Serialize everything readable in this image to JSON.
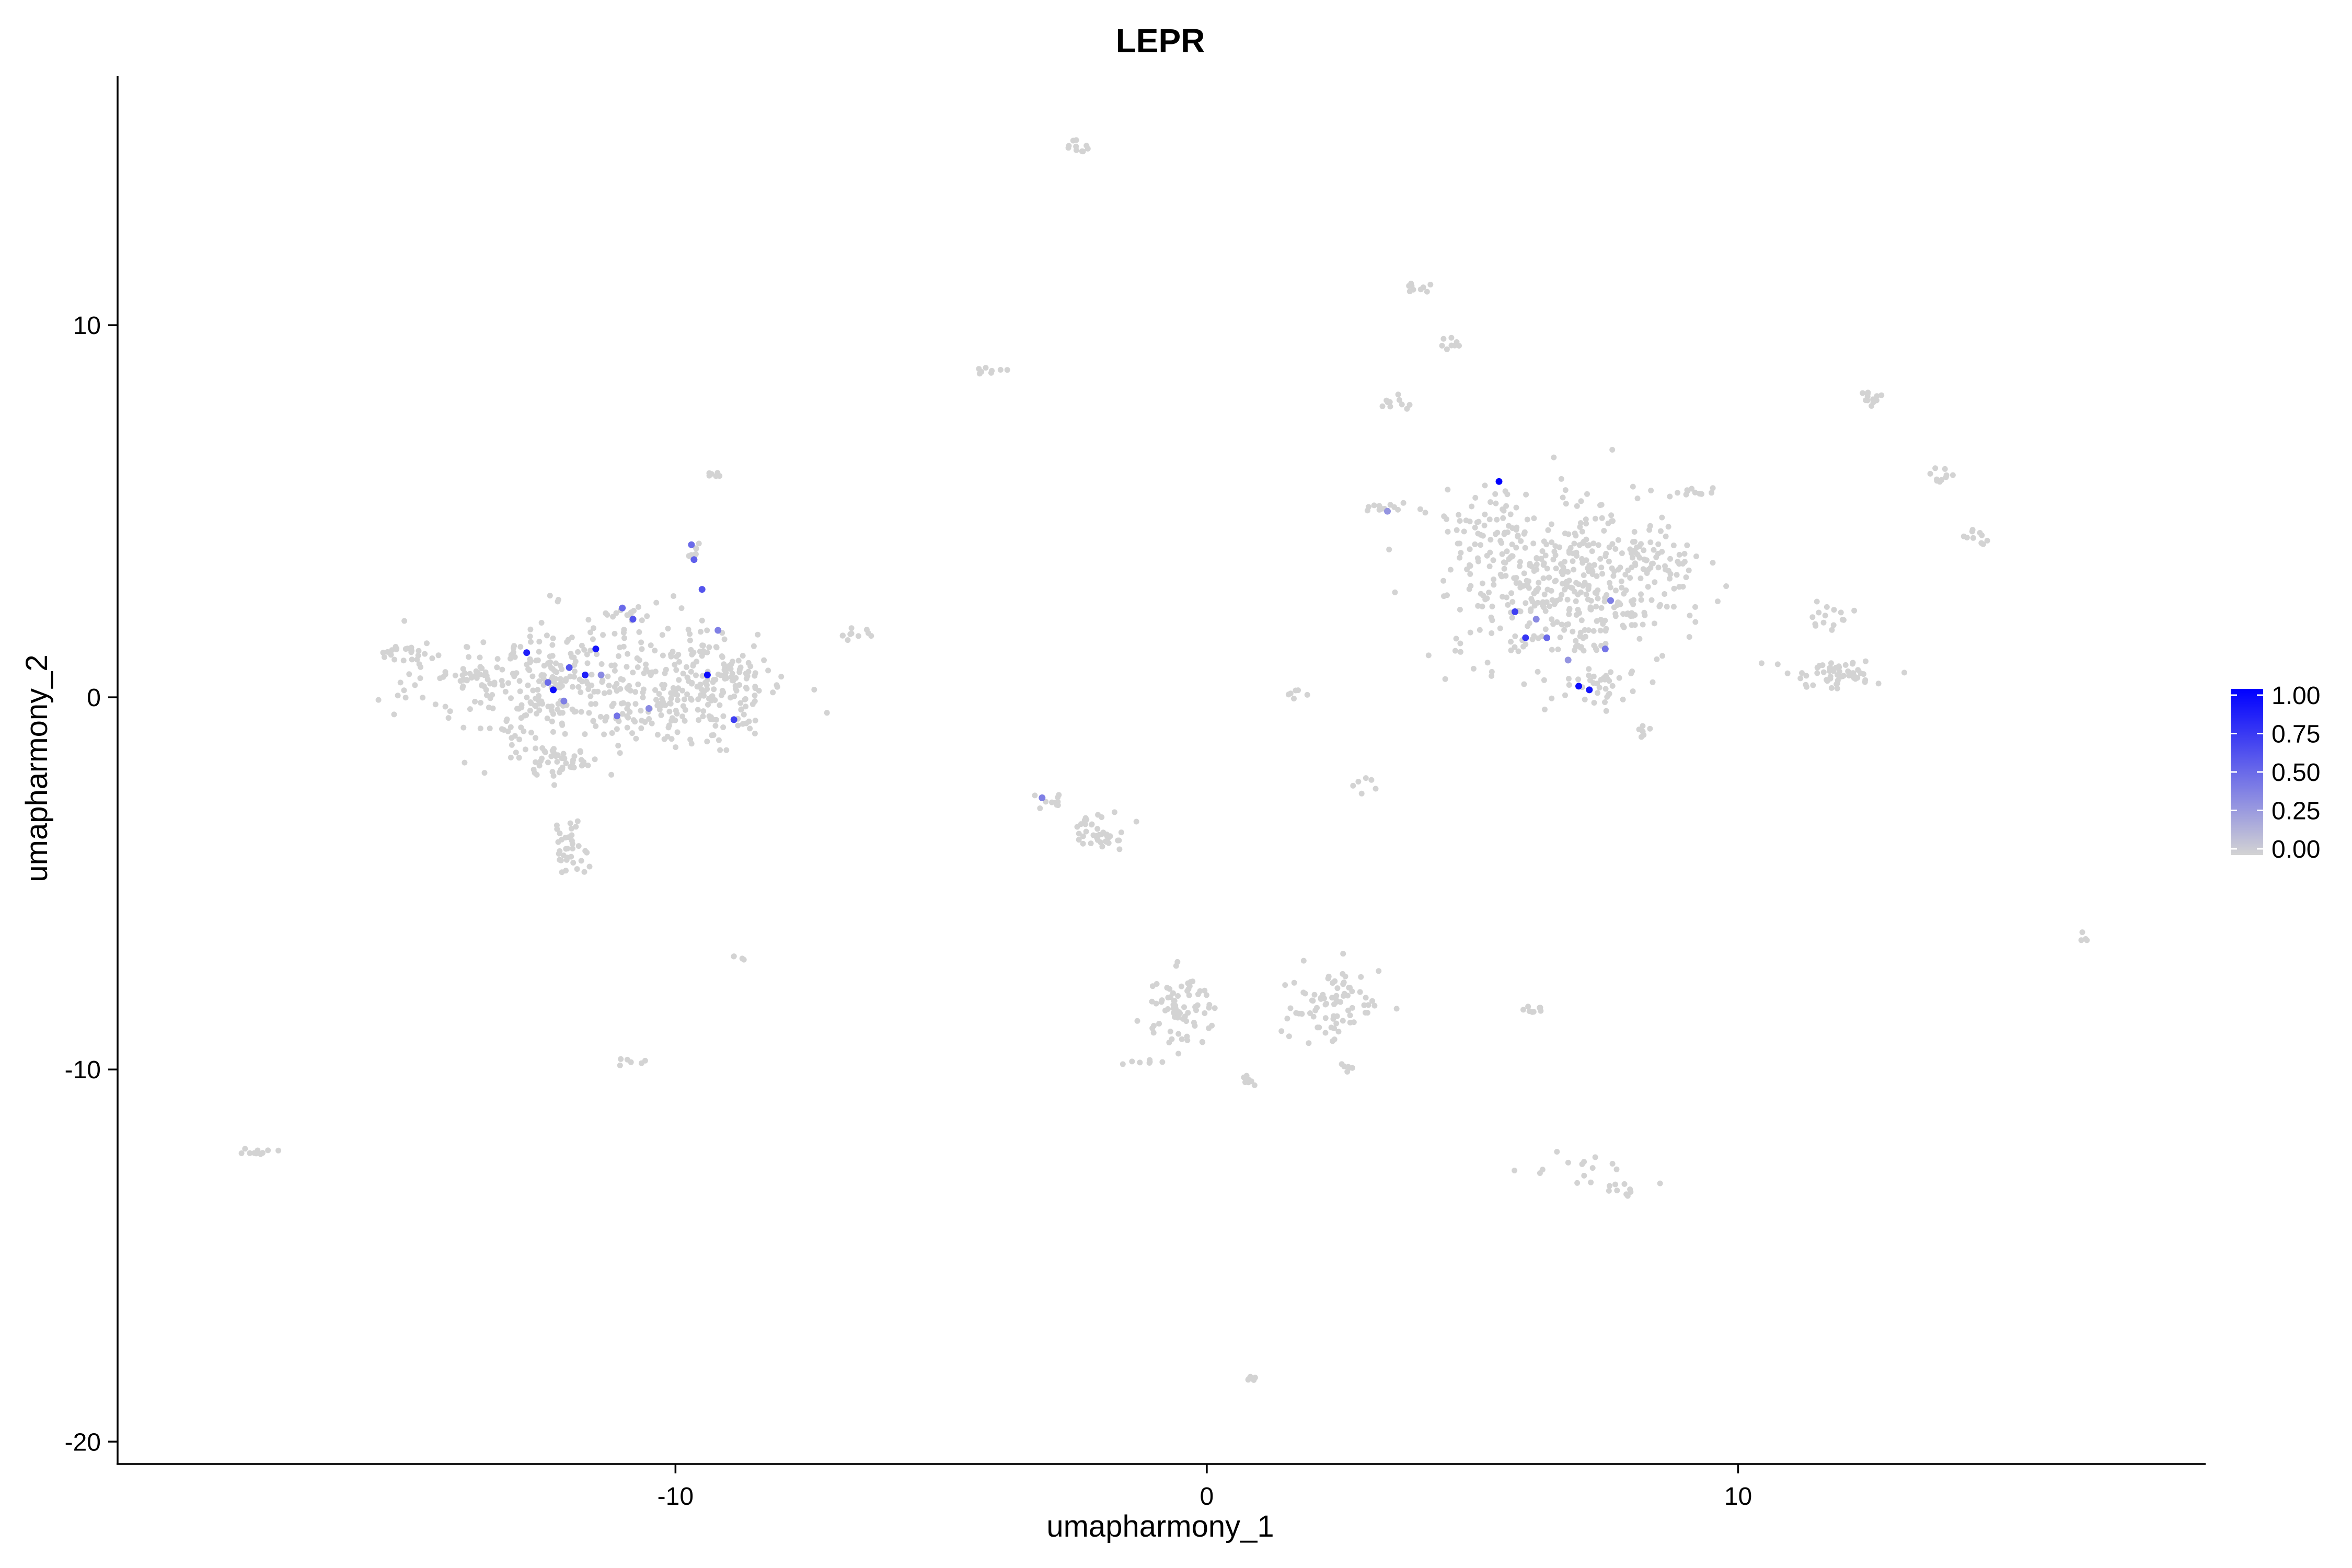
{
  "chart_data": {
    "type": "scatter",
    "title": "LEPR",
    "xlabel": "umapharmony_1",
    "ylabel": "umapharmony_2",
    "xlim": [
      -20.5,
      18.8
    ],
    "ylim": [
      -20.6,
      16.7
    ],
    "xticks": [
      -10,
      0,
      10
    ],
    "yticks": [
      -20,
      -10,
      0,
      10
    ],
    "grid": false,
    "legend": {
      "position": "right",
      "type": "colorbar",
      "ticks": [
        "1.00",
        "0.75",
        "0.50",
        "0.25",
        "0.00"
      ],
      "values": [
        1.0,
        0.75,
        0.5,
        0.25,
        0.0
      ],
      "range": [
        0,
        1
      ],
      "color_low": "#d3d3d3",
      "color_high": "#0000ff"
    },
    "clusters": [
      {
        "center": [
          -12.2,
          0.3
        ],
        "spread": [
          1.2,
          0.9
        ],
        "count": 320
      },
      {
        "center": [
          -9.5,
          0.3
        ],
        "spread": [
          0.8,
          0.8
        ],
        "count": 220
      },
      {
        "center": [
          -12.2,
          -1.7
        ],
        "spread": [
          0.4,
          0.2
        ],
        "count": 45
      },
      {
        "center": [
          -12.0,
          -4.0
        ],
        "spread": [
          0.18,
          0.35
        ],
        "count": 35
      },
      {
        "center": [
          -15.1,
          1.2
        ],
        "spread": [
          0.3,
          0.1
        ],
        "count": 22
      },
      {
        "center": [
          -13.9,
          0.5
        ],
        "spread": [
          0.3,
          0.1
        ],
        "count": 18
      },
      {
        "center": [
          -11.0,
          2.3
        ],
        "spread": [
          0.2,
          0.1
        ],
        "count": 12
      },
      {
        "center": [
          -9.7,
          3.9
        ],
        "spread": [
          0.12,
          0.15
        ],
        "count": 8
      },
      {
        "center": [
          -9.2,
          6.0
        ],
        "spread": [
          0.1,
          0.05
        ],
        "count": 6
      },
      {
        "center": [
          -6.6,
          1.7
        ],
        "spread": [
          0.2,
          0.1
        ],
        "count": 10
      },
      {
        "center": [
          -8.6,
          0.7
        ],
        "spread": [
          0.2,
          0.1
        ],
        "count": 12
      },
      {
        "center": [
          -10.9,
          -9.8
        ],
        "spread": [
          0.15,
          0.05
        ],
        "count": 6
      },
      {
        "center": [
          -8.8,
          -7.0
        ],
        "spread": [
          0.08,
          0.04
        ],
        "count": 4
      },
      {
        "center": [
          -17.9,
          -12.2
        ],
        "spread": [
          0.15,
          0.08
        ],
        "count": 10
      },
      {
        "center": [
          -4.0,
          8.8
        ],
        "spread": [
          0.15,
          0.1
        ],
        "count": 8
      },
      {
        "center": [
          -2.4,
          14.8
        ],
        "spread": [
          0.1,
          0.1
        ],
        "count": 10
      },
      {
        "center": [
          -3.0,
          -2.8
        ],
        "spread": [
          0.25,
          0.1
        ],
        "count": 10
      },
      {
        "center": [
          -2.0,
          -3.6
        ],
        "spread": [
          0.3,
          0.25
        ],
        "count": 40
      },
      {
        "center": [
          -0.5,
          -8.4
        ],
        "spread": [
          0.35,
          0.5
        ],
        "count": 75
      },
      {
        "center": [
          2.4,
          -8.3
        ],
        "spread": [
          0.45,
          0.5
        ],
        "count": 80
      },
      {
        "center": [
          -1.3,
          -9.8
        ],
        "spread": [
          0.15,
          0.05
        ],
        "count": 6
      },
      {
        "center": [
          0.8,
          -10.3
        ],
        "spread": [
          0.12,
          0.08
        ],
        "count": 8
      },
      {
        "center": [
          2.6,
          -9.9
        ],
        "spread": [
          0.1,
          0.15
        ],
        "count": 6
      },
      {
        "center": [
          0.9,
          -18.3
        ],
        "spread": [
          0.06,
          0.05
        ],
        "count": 5
      },
      {
        "center": [
          1.6,
          0.1
        ],
        "spread": [
          0.1,
          0.05
        ],
        "count": 6
      },
      {
        "center": [
          2.9,
          -2.4
        ],
        "spread": [
          0.1,
          0.1
        ],
        "count": 6
      },
      {
        "center": [
          3.4,
          5.1
        ],
        "spread": [
          0.4,
          0.06
        ],
        "count": 16
      },
      {
        "center": [
          3.5,
          7.9
        ],
        "spread": [
          0.15,
          0.1
        ],
        "count": 10
      },
      {
        "center": [
          3.9,
          11.0
        ],
        "spread": [
          0.12,
          0.1
        ],
        "count": 10
      },
      {
        "center": [
          4.6,
          9.5
        ],
        "spread": [
          0.12,
          0.12
        ],
        "count": 8
      },
      {
        "center": [
          6.9,
          3.0
        ],
        "spread": [
          1.1,
          1.1
        ],
        "count": 420
      },
      {
        "center": [
          5.5,
          4.5
        ],
        "spread": [
          0.5,
          0.6
        ],
        "count": 60
      },
      {
        "center": [
          8.3,
          3.5
        ],
        "spread": [
          0.4,
          0.3
        ],
        "count": 30
      },
      {
        "center": [
          9.0,
          5.5
        ],
        "spread": [
          0.3,
          0.1
        ],
        "count": 12
      },
      {
        "center": [
          7.4,
          0.3
        ],
        "spread": [
          0.4,
          0.25
        ],
        "count": 30
      },
      {
        "center": [
          8.2,
          -0.9
        ],
        "spread": [
          0.1,
          0.08
        ],
        "count": 6
      },
      {
        "center": [
          6.2,
          -8.4
        ],
        "spread": [
          0.12,
          0.08
        ],
        "count": 8
      },
      {
        "center": [
          7.0,
          -12.6
        ],
        "spread": [
          0.45,
          0.25
        ],
        "count": 14
      },
      {
        "center": [
          7.9,
          -13.2
        ],
        "spread": [
          0.2,
          0.1
        ],
        "count": 10
      },
      {
        "center": [
          11.8,
          0.6
        ],
        "spread": [
          0.5,
          0.2
        ],
        "count": 55
      },
      {
        "center": [
          11.6,
          2.2
        ],
        "spread": [
          0.25,
          0.3
        ],
        "count": 15
      },
      {
        "center": [
          12.5,
          8.1
        ],
        "spread": [
          0.12,
          0.12
        ],
        "count": 12
      },
      {
        "center": [
          13.8,
          5.9
        ],
        "spread": [
          0.15,
          0.1
        ],
        "count": 10
      },
      {
        "center": [
          14.5,
          4.3
        ],
        "spread": [
          0.15,
          0.15
        ],
        "count": 10
      },
      {
        "center": [
          16.5,
          -6.5
        ],
        "spread": [
          0.05,
          0.1
        ],
        "count": 4
      }
    ],
    "expressed_cells": [
      [
        -12.8,
        1.2,
        0.85
      ],
      [
        -12.3,
        0.2,
        0.95
      ],
      [
        -12.0,
        0.8,
        0.6
      ],
      [
        -11.7,
        0.6,
        0.85
      ],
      [
        -11.5,
        1.3,
        0.9
      ],
      [
        -12.1,
        -0.1,
        0.4
      ],
      [
        -11.4,
        0.6,
        0.35
      ],
      [
        -11.1,
        -0.5,
        0.45
      ],
      [
        -11.0,
        2.4,
        0.5
      ],
      [
        -10.8,
        2.1,
        0.6
      ],
      [
        -9.7,
        4.1,
        0.5
      ],
      [
        -9.65,
        3.7,
        0.55
      ],
      [
        -9.5,
        2.9,
        0.6
      ],
      [
        -9.4,
        0.6,
        0.95
      ],
      [
        -9.2,
        1.8,
        0.4
      ],
      [
        -10.5,
        -0.3,
        0.35
      ],
      [
        -8.9,
        -0.6,
        0.7
      ],
      [
        -12.4,
        0.4,
        0.5
      ],
      [
        -3.1,
        -2.7,
        0.4
      ],
      [
        5.5,
        5.8,
        1.0
      ],
      [
        5.8,
        2.3,
        0.7
      ],
      [
        6.0,
        1.6,
        0.75
      ],
      [
        6.4,
        1.6,
        0.5
      ],
      [
        7.0,
        0.3,
        0.95
      ],
      [
        7.2,
        0.2,
        0.9
      ],
      [
        7.5,
        1.3,
        0.45
      ],
      [
        7.6,
        2.6,
        0.4
      ],
      [
        6.2,
        2.1,
        0.35
      ],
      [
        6.8,
        1.0,
        0.3
      ],
      [
        3.4,
        5.0,
        0.3
      ]
    ]
  }
}
